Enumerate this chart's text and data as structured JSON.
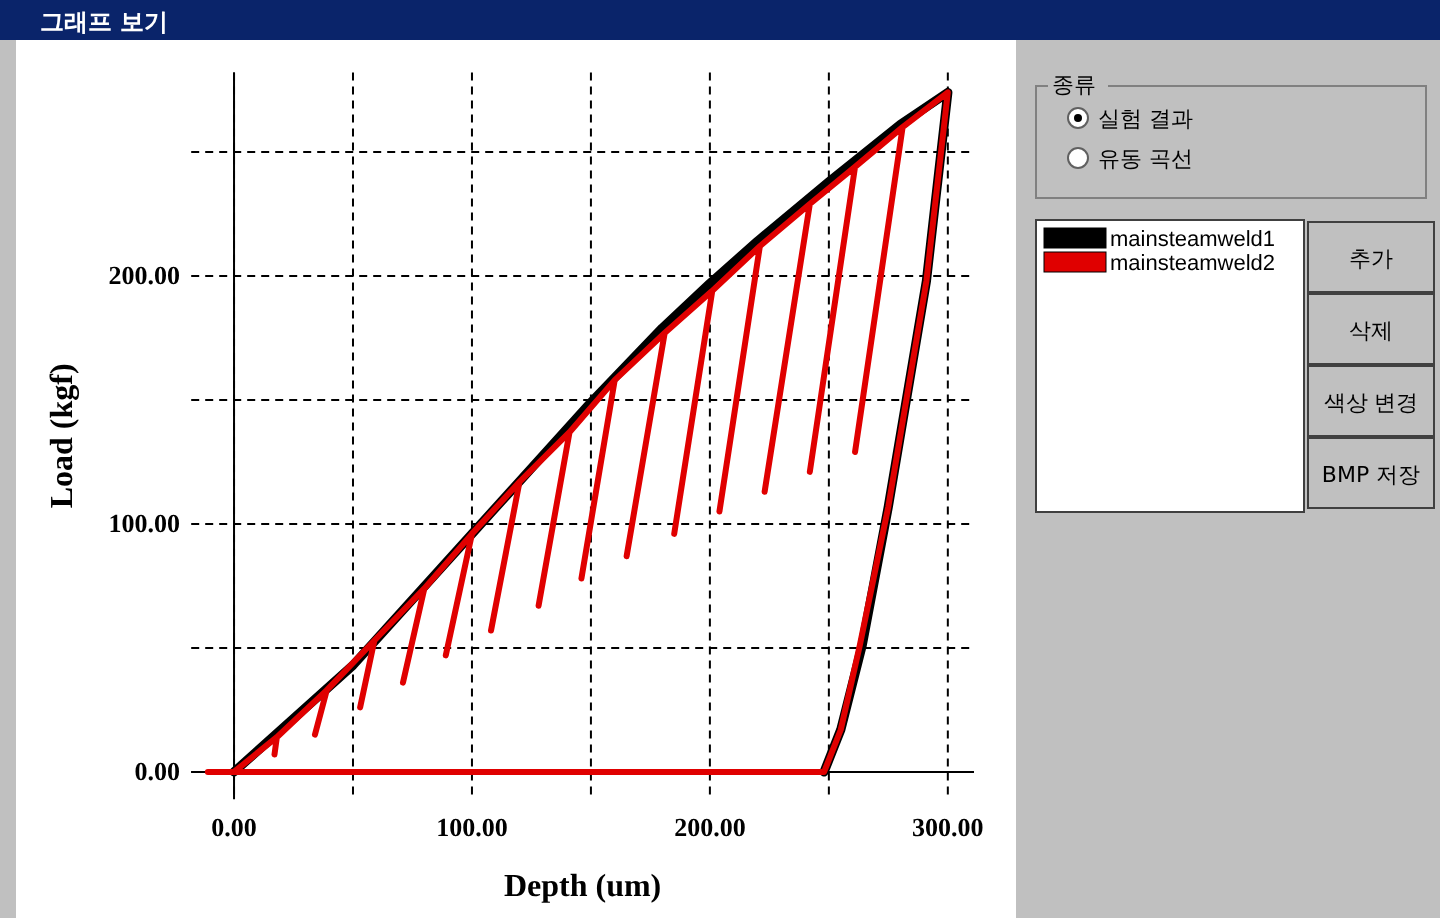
{
  "chart_data": {
    "type": "line",
    "title": "그래프 보기",
    "xlabel": "Depth (um)",
    "ylabel": "Load (kgf)",
    "xlim": [
      -18,
      311
    ],
    "ylim": [
      -11,
      282
    ],
    "xticks": [
      {
        "value": 0,
        "label": "0.00"
      },
      {
        "value": 50,
        "label": null
      },
      {
        "value": 100,
        "label": "100.00"
      },
      {
        "value": 150,
        "label": null
      },
      {
        "value": 200,
        "label": "200.00"
      },
      {
        "value": 250,
        "label": null
      },
      {
        "value": 300,
        "label": "300.00"
      }
    ],
    "yticks": [
      {
        "value": 0,
        "label": "0.00"
      },
      {
        "value": 50,
        "label": null
      },
      {
        "value": 100,
        "label": "100.00"
      },
      {
        "value": 150,
        "label": null
      },
      {
        "value": 200,
        "label": "200.00"
      },
      {
        "value": 250,
        "label": null
      }
    ],
    "grid": true,
    "legend": "right",
    "series": [
      {
        "name": "mainsteamweld1",
        "color": "#000000",
        "x": [
          0,
          50,
          100,
          150,
          180,
          200,
          220,
          250,
          280,
          300,
          291,
          275,
          264,
          255,
          248
        ],
        "values": [
          0,
          43,
          96,
          149,
          179,
          197,
          214,
          238,
          261,
          274,
          198,
          107,
          51,
          17,
          0
        ]
      },
      {
        "name": "mainsteamweld2",
        "color": "#e00000",
        "x": [
          0,
          18,
          17,
          18,
          39,
          34,
          39,
          59,
          53,
          59,
          80,
          71,
          80,
          100,
          89,
          100,
          120,
          108,
          120,
          141,
          128,
          141,
          160,
          146,
          160,
          181,
          165,
          181,
          201,
          185,
          201,
          221,
          204,
          221,
          242,
          223,
          242,
          261,
          242,
          261,
          281,
          261,
          281,
          300,
          291,
          275,
          263,
          255,
          248,
          -11
        ],
        "values": [
          0,
          14,
          7,
          14,
          33,
          15,
          33,
          53,
          26,
          53,
          74,
          36,
          74,
          96,
          47,
          96,
          117,
          57,
          117,
          137,
          67,
          137,
          158,
          78,
          158,
          177,
          87,
          177,
          194,
          96,
          194,
          212,
          105,
          212,
          229,
          113,
          229,
          244,
          121,
          244,
          260,
          129,
          260,
          274,
          198,
          107,
          51,
          17,
          0,
          0
        ]
      }
    ],
    "annotations": [
      "종류",
      "실험 결과",
      "유동 곡선",
      "추가",
      "삭제",
      "색상 변경",
      "BMP 저장"
    ]
  }
}
